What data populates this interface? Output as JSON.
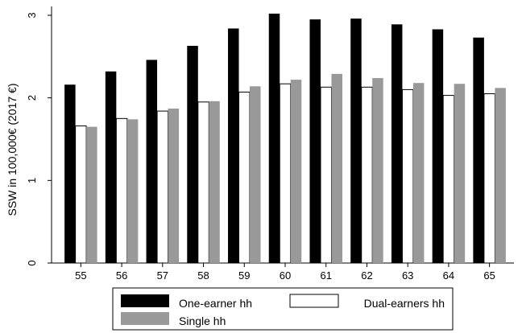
{
  "chart_data": {
    "type": "bar",
    "ylabel": "SSW in 100,000€ (2017 €)",
    "xlabel": "",
    "categories": [
      "55",
      "56",
      "57",
      "58",
      "59",
      "60",
      "61",
      "62",
      "63",
      "64",
      "65"
    ],
    "ylim": [
      0,
      3
    ],
    "yticks": [
      "0",
      "1",
      "2",
      "3"
    ],
    "grid": false,
    "legend_position": "bottom",
    "series": [
      {
        "name": "One-earner hh",
        "color": "#000000",
        "values": [
          2.16,
          2.32,
          2.46,
          2.63,
          2.84,
          3.02,
          2.95,
          2.96,
          2.89,
          2.83,
          2.73
        ]
      },
      {
        "name": "Dual-earners hh",
        "color": "#ffffff",
        "values": [
          1.66,
          1.75,
          1.84,
          1.95,
          2.07,
          2.17,
          2.13,
          2.13,
          2.1,
          2.03,
          2.05
        ]
      },
      {
        "name": "Single hh",
        "color": "#999999",
        "values": [
          1.65,
          1.74,
          1.87,
          1.96,
          2.14,
          2.22,
          2.29,
          2.24,
          2.18,
          2.17,
          2.12
        ]
      }
    ]
  }
}
